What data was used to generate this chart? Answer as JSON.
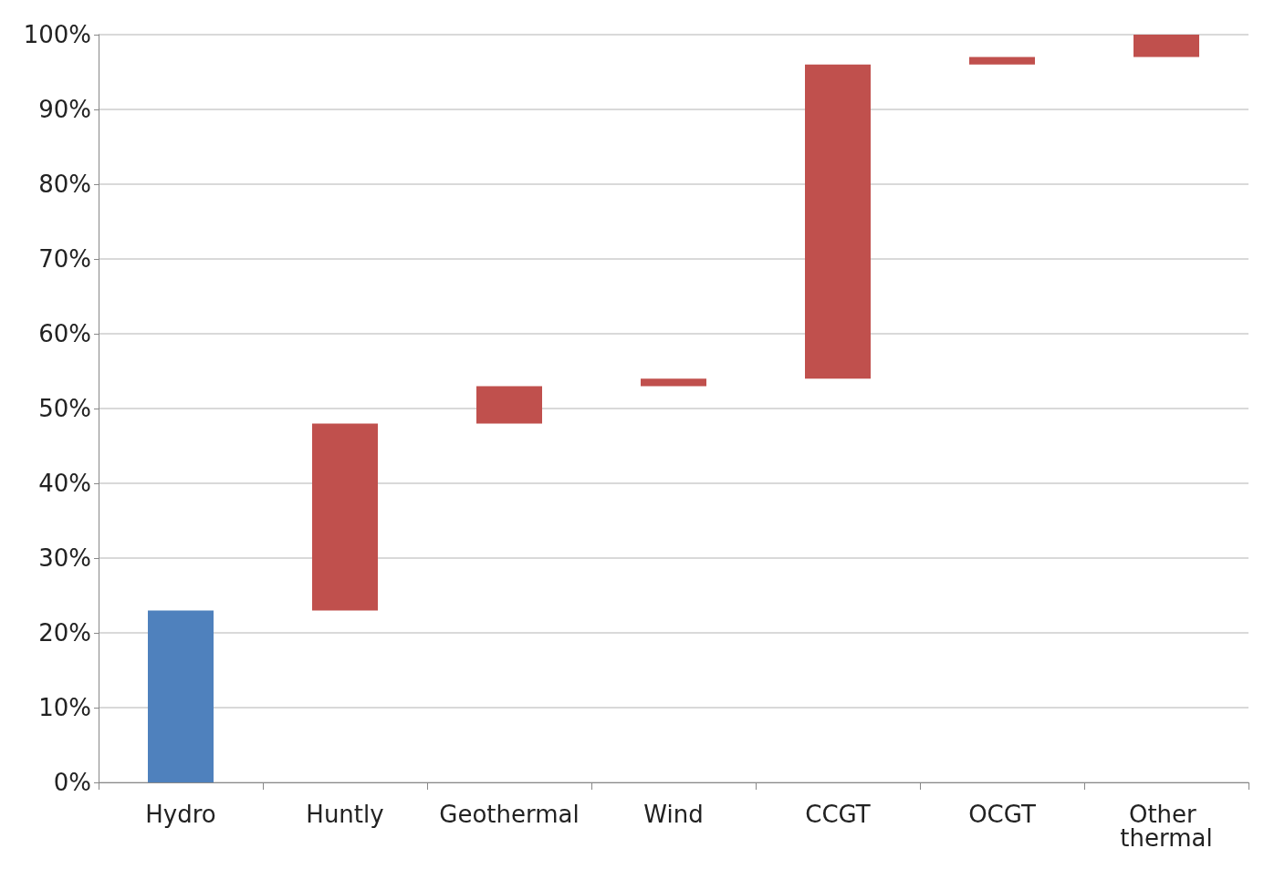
{
  "chart_data": {
    "type": "bar",
    "categories": [
      "Hydro",
      "Huntly",
      "Geothermal",
      "Wind",
      "CCGT",
      "OCGT",
      "Other thermal"
    ],
    "base": [
      0,
      23,
      48,
      53,
      54,
      96,
      97
    ],
    "values": [
      23,
      25,
      5,
      1,
      42,
      1,
      3
    ],
    "colors": [
      "#4f81bd",
      "#c0504d",
      "#c0504d",
      "#c0504d",
      "#c0504d",
      "#c0504d",
      "#c0504d"
    ],
    "ylim": [
      0,
      100
    ],
    "yticks": [
      {
        "value": 0,
        "label": "0%"
      },
      {
        "value": 10,
        "label": "10%"
      },
      {
        "value": 20,
        "label": "20%"
      },
      {
        "value": 30,
        "label": "30%"
      },
      {
        "value": 40,
        "label": "40%"
      },
      {
        "value": 50,
        "label": "50%"
      },
      {
        "value": 60,
        "label": "60%"
      },
      {
        "value": 70,
        "label": "70%"
      },
      {
        "value": 80,
        "label": "80%"
      },
      {
        "value": 90,
        "label": "90%"
      },
      {
        "value": 100,
        "label": "100%"
      }
    ],
    "grid": "y"
  }
}
